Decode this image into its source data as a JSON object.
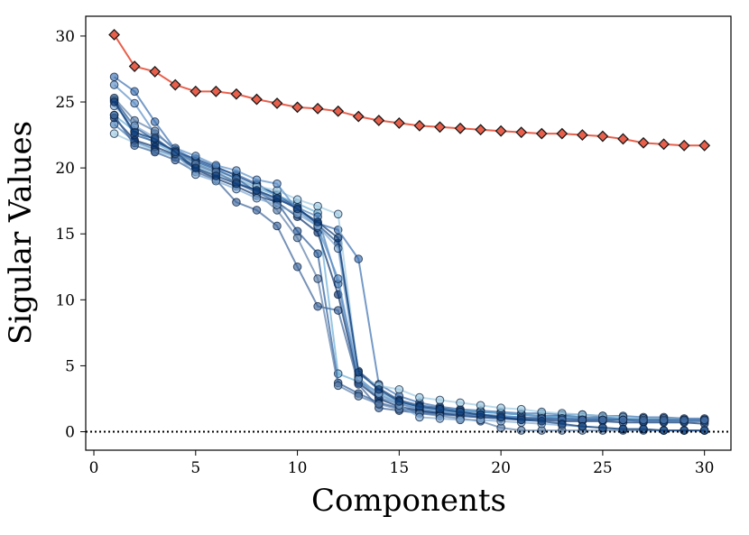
{
  "chart_data": {
    "type": "line",
    "xlabel": "Components",
    "ylabel": "Sigular Values",
    "xlim": [
      -0.4,
      31.3
    ],
    "ylim": [
      -1.4,
      31.5
    ],
    "x_ticks": [
      0,
      5,
      10,
      15,
      20,
      25,
      30
    ],
    "y_ticks": [
      0,
      5,
      10,
      15,
      20,
      25,
      30
    ],
    "grid": false,
    "reference_line": {
      "y": 0,
      "style": "dotted",
      "color": "#000000"
    },
    "x": [
      1,
      2,
      3,
      4,
      5,
      6,
      7,
      8,
      9,
      10,
      11,
      12,
      13,
      14,
      15,
      16,
      17,
      18,
      19,
      20,
      21,
      22,
      23,
      24,
      25,
      26,
      27,
      28,
      29,
      30
    ],
    "highlight_series": {
      "marker": "diamond",
      "color": "#e8604c",
      "values": [
        30.1,
        27.7,
        27.3,
        26.3,
        25.8,
        25.8,
        25.6,
        25.2,
        24.9,
        24.6,
        24.5,
        24.3,
        23.9,
        23.6,
        23.4,
        23.2,
        23.1,
        23.0,
        22.9,
        22.8,
        22.7,
        22.6,
        22.6,
        22.5,
        22.4,
        22.2,
        21.9,
        21.8,
        21.7,
        21.7
      ]
    },
    "series": [
      {
        "color": "#3b6fb0",
        "values": [
          26.9,
          25.8,
          23.5,
          21.4,
          20.6,
          20.0,
          19.5,
          18.8,
          17.9,
          16.9,
          15.8,
          15.3,
          13.1,
          3.6,
          2.7,
          2.2,
          1.9,
          1.7,
          1.6,
          1.5,
          1.4,
          1.4,
          1.3,
          1.3,
          1.2,
          1.2,
          1.1,
          1.1,
          1.0,
          1.0
        ]
      },
      {
        "color": "#1c4d8c",
        "values": [
          25.2,
          23.1,
          22.1,
          21.2,
          20.7,
          20.1,
          19.4,
          18.7,
          18.0,
          17.0,
          15.7,
          14.3,
          4.6,
          3.3,
          2.4,
          2.0,
          1.8,
          1.6,
          1.5,
          1.4,
          1.3,
          1.2,
          1.2,
          1.1,
          1.1,
          1.0,
          1.0,
          1.0,
          0.9,
          0.9
        ]
      },
      {
        "color": "#6aaed6",
        "values": [
          24.0,
          22.8,
          21.9,
          21.1,
          20.4,
          19.8,
          19.2,
          18.5,
          17.9,
          17.3,
          16.6,
          4.4,
          3.8,
          3.0,
          2.3,
          1.9,
          1.7,
          1.6,
          1.5,
          1.4,
          1.3,
          1.2,
          1.1,
          1.1,
          1.0,
          1.0,
          1.0,
          0.9,
          0.9,
          0.9
        ]
      },
      {
        "color": "#4a7fb8",
        "values": [
          23.3,
          22.0,
          21.4,
          20.9,
          20.2,
          19.6,
          18.9,
          18.3,
          17.6,
          17.0,
          16.3,
          11.2,
          3.9,
          2.6,
          2.1,
          1.7,
          1.5,
          1.4,
          1.3,
          1.2,
          1.1,
          1.1,
          1.0,
          1.0,
          1.0,
          0.9,
          0.9,
          0.9,
          0.9,
          0.9
        ]
      },
      {
        "color": "#9ecae1",
        "values": [
          22.6,
          21.9,
          21.3,
          20.8,
          20.1,
          19.5,
          19.1,
          18.6,
          18.3,
          17.6,
          17.1,
          16.5,
          4.3,
          3.5,
          3.2,
          2.6,
          2.4,
          2.2,
          2.0,
          1.8,
          1.7,
          1.5,
          1.4,
          1.3,
          1.2,
          1.1,
          1.0,
          1.0,
          0.9,
          0.9
        ]
      },
      {
        "color": "#2a5a99",
        "values": [
          25.1,
          22.5,
          22.0,
          21.3,
          20.5,
          19.9,
          19.2,
          18.2,
          17.4,
          15.2,
          13.5,
          3.7,
          2.9,
          2.2,
          1.8,
          1.5,
          1.4,
          1.3,
          1.2,
          1.1,
          1.0,
          1.0,
          1.0,
          0.9,
          0.9,
          0.9,
          0.8,
          0.8,
          0.8,
          0.8
        ]
      },
      {
        "color": "#08306b",
        "values": [
          23.8,
          22.1,
          21.6,
          21.0,
          19.9,
          19.2,
          18.6,
          17.9,
          17.4,
          16.3,
          15.1,
          10.4,
          3.7,
          2.5,
          1.9,
          1.6,
          1.4,
          1.2,
          1.1,
          1.0,
          0.9,
          0.9,
          0.8,
          0.8,
          0.8,
          0.7,
          0.7,
          0.7,
          0.7,
          0.6
        ]
      },
      {
        "color": "#5a8ec6",
        "values": [
          26.3,
          24.9,
          22.6,
          21.5,
          20.9,
          20.2,
          19.8,
          19.1,
          18.8,
          16.8,
          15.5,
          11.6,
          4.1,
          2.8,
          2.2,
          1.8,
          1.6,
          1.5,
          1.3,
          1.2,
          1.1,
          1.0,
          1.0,
          0.9,
          0.9,
          0.9,
          0.8,
          0.8,
          0.8,
          0.8
        ]
      },
      {
        "color": "#3c6499",
        "values": [
          24.0,
          21.7,
          21.2,
          20.6,
          19.7,
          19.1,
          17.4,
          16.8,
          15.6,
          12.5,
          9.5,
          9.2,
          3.6,
          1.8,
          1.6,
          1.4,
          1.3,
          1.2,
          1.1,
          1.0,
          1.0,
          1.0,
          0.9,
          0.9,
          0.9,
          0.9,
          0.9,
          0.9,
          0.9,
          0.9
        ]
      },
      {
        "color": "#5b7ea8",
        "values": [
          25.3,
          23.6,
          22.8,
          21.3,
          20.3,
          19.7,
          18.9,
          18.1,
          16.8,
          14.7,
          11.6,
          3.5,
          2.7,
          2.1,
          1.7,
          1.4,
          1.2,
          1.0,
          0.8,
          0.3,
          0.1,
          0.1,
          0.1,
          0.1,
          0.1,
          0.1,
          0.1,
          0.1,
          0.1,
          0.1
        ]
      },
      {
        "color": "#7ea6d0",
        "values": [
          24.7,
          23.2,
          22.3,
          21.1,
          19.5,
          19.0,
          18.4,
          17.7,
          17.2,
          16.5,
          15.6,
          13.9,
          4.0,
          2.9,
          2.0,
          1.1,
          1.0,
          0.9,
          0.9,
          0.8,
          0.7,
          0.6,
          0.5,
          0.4,
          0.3,
          0.2,
          0.2,
          0.1,
          0.1,
          0.1
        ]
      },
      {
        "color": "#0b3a78",
        "values": [
          25.0,
          22.7,
          22.2,
          21.2,
          20.0,
          19.4,
          18.8,
          18.3,
          17.7,
          16.9,
          15.9,
          14.7,
          4.5,
          3.2,
          2.3,
          1.9,
          1.7,
          1.5,
          1.3,
          1.1,
          0.9,
          0.8,
          0.6,
          0.4,
          0.3,
          0.2,
          0.2,
          0.1,
          0.1,
          0.1
        ]
      }
    ]
  }
}
